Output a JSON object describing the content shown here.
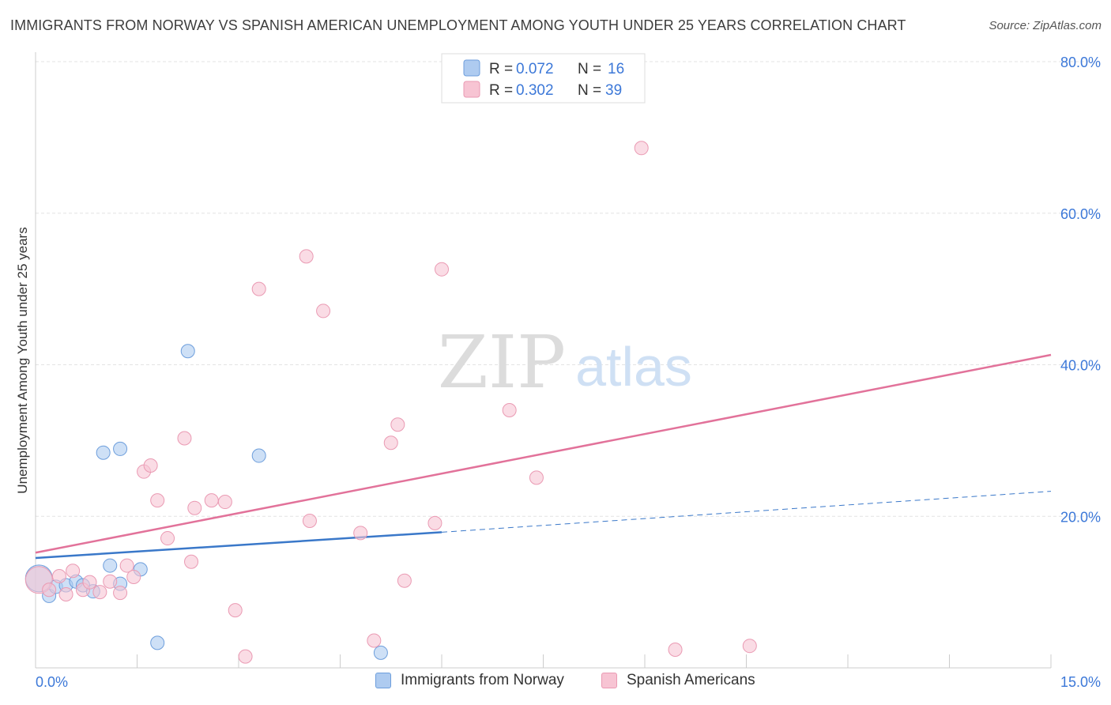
{
  "header": {
    "title": "IMMIGRANTS FROM NORWAY VS SPANISH AMERICAN UNEMPLOYMENT AMONG YOUTH UNDER 25 YEARS CORRELATION CHART",
    "source": "Source: ZipAtlas.com"
  },
  "watermark": {
    "zip": "ZIP",
    "atlas": "atlas"
  },
  "legend_top": {
    "rows": [
      {
        "r_label": "R = ",
        "r_value": "0.072",
        "n_label": "N = ",
        "n_value": "16"
      },
      {
        "r_label": "R = ",
        "r_value": "0.302",
        "n_label": "N = ",
        "n_value": "39"
      }
    ]
  },
  "legend_bottom": {
    "norway": "Immigrants from Norway",
    "spanish": "Spanish Americans"
  },
  "colors": {
    "norway_fill": "#aecbf0",
    "norway_stroke": "#6d9edc",
    "norway_line": "#3a78c9",
    "spanish_fill": "#f7c4d3",
    "spanish_stroke": "#ea9ab3",
    "spanish_line": "#e2729a",
    "axis_label": "#3c78d8",
    "grid": "#e3e3e3"
  },
  "chart_data": {
    "type": "scatter",
    "title": "IMMIGRANTS FROM NORWAY VS SPANISH AMERICAN UNEMPLOYMENT AMONG YOUTH UNDER 25 YEARS CORRELATION CHART",
    "xlabel": "",
    "ylabel": "Unemployment Among Youth under 25 years",
    "xlim": [
      0,
      15
    ],
    "ylim": [
      0,
      80
    ],
    "x_tick_labels": [
      "0.0%",
      "15.0%"
    ],
    "y_ticks": [
      20,
      40,
      60,
      80
    ],
    "y_tick_labels": [
      "20.0%",
      "40.0%",
      "60.0%",
      "80.0%"
    ],
    "grid": true,
    "legend_position": "top-center",
    "series": [
      {
        "name": "Immigrants from Norway",
        "R": 0.072,
        "N": 16,
        "points": [
          {
            "x": 0.05,
            "y": 11.8,
            "big": true
          },
          {
            "x": 0.2,
            "y": 9.5
          },
          {
            "x": 0.3,
            "y": 10.7
          },
          {
            "x": 0.45,
            "y": 10.9
          },
          {
            "x": 0.6,
            "y": 11.4
          },
          {
            "x": 0.7,
            "y": 10.9
          },
          {
            "x": 0.85,
            "y": 10.1
          },
          {
            "x": 1.0,
            "y": 28.4
          },
          {
            "x": 1.1,
            "y": 13.5
          },
          {
            "x": 1.25,
            "y": 28.9
          },
          {
            "x": 1.25,
            "y": 11.1
          },
          {
            "x": 1.55,
            "y": 13.0
          },
          {
            "x": 1.8,
            "y": 3.3
          },
          {
            "x": 2.25,
            "y": 41.8
          },
          {
            "x": 3.3,
            "y": 28.0
          },
          {
            "x": 5.1,
            "y": 2.0
          }
        ],
        "trend": {
          "x0": 0,
          "y0": 14.5,
          "x1": 6.0,
          "y1": 17.9,
          "dashed_to_x": 15,
          "dashed_to_y": 23.3
        }
      },
      {
        "name": "Spanish Americans",
        "R": 0.302,
        "N": 39,
        "points": [
          {
            "x": 0.05,
            "y": 11.6,
            "big": true
          },
          {
            "x": 0.2,
            "y": 10.3
          },
          {
            "x": 0.35,
            "y": 12.1
          },
          {
            "x": 0.45,
            "y": 9.7
          },
          {
            "x": 0.55,
            "y": 12.8
          },
          {
            "x": 0.7,
            "y": 10.3
          },
          {
            "x": 0.8,
            "y": 11.3
          },
          {
            "x": 0.95,
            "y": 10.0
          },
          {
            "x": 1.1,
            "y": 11.4
          },
          {
            "x": 1.25,
            "y": 9.9
          },
          {
            "x": 1.35,
            "y": 13.5
          },
          {
            "x": 1.45,
            "y": 12.0
          },
          {
            "x": 1.6,
            "y": 25.9
          },
          {
            "x": 1.7,
            "y": 26.7
          },
          {
            "x": 1.8,
            "y": 22.1
          },
          {
            "x": 1.95,
            "y": 17.1
          },
          {
            "x": 2.2,
            "y": 30.3
          },
          {
            "x": 2.3,
            "y": 14.0
          },
          {
            "x": 2.35,
            "y": 21.1
          },
          {
            "x": 2.6,
            "y": 22.1
          },
          {
            "x": 2.8,
            "y": 21.9
          },
          {
            "x": 2.95,
            "y": 7.6
          },
          {
            "x": 3.1,
            "y": 1.5
          },
          {
            "x": 3.3,
            "y": 50.0
          },
          {
            "x": 4.0,
            "y": 54.3
          },
          {
            "x": 4.05,
            "y": 19.4
          },
          {
            "x": 4.25,
            "y": 47.1
          },
          {
            "x": 4.8,
            "y": 17.8
          },
          {
            "x": 5.0,
            "y": 3.6
          },
          {
            "x": 5.25,
            "y": 29.7
          },
          {
            "x": 5.35,
            "y": 32.1
          },
          {
            "x": 5.45,
            "y": 11.5
          },
          {
            "x": 5.9,
            "y": 19.1
          },
          {
            "x": 6.0,
            "y": 52.6
          },
          {
            "x": 7.0,
            "y": 34.0
          },
          {
            "x": 7.4,
            "y": 25.1
          },
          {
            "x": 8.95,
            "y": 68.6
          },
          {
            "x": 9.45,
            "y": 2.4
          },
          {
            "x": 10.55,
            "y": 2.9
          }
        ],
        "trend": {
          "x0": 0,
          "y0": 15.2,
          "x1": 15,
          "y1": 41.3
        }
      }
    ]
  }
}
